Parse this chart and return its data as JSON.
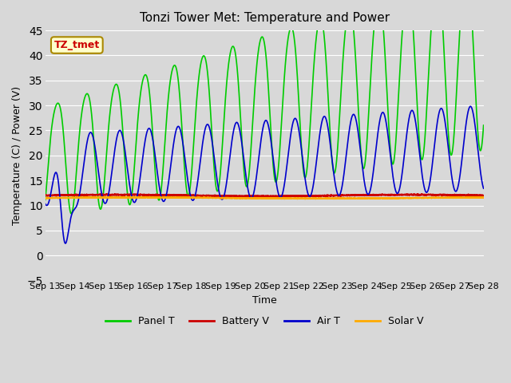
{
  "title": "Tonzi Tower Met: Temperature and Power",
  "xlabel": "Time",
  "ylabel": "Temperature (C) / Power (V)",
  "xlim": [
    0,
    15
  ],
  "ylim": [
    -5,
    45
  ],
  "yticks": [
    -5,
    0,
    5,
    10,
    15,
    20,
    25,
    30,
    35,
    40,
    45
  ],
  "xtick_labels": [
    "Sep 13",
    "Sep 14",
    "Sep 15",
    "Sep 16",
    "Sep 17",
    "Sep 18",
    "Sep 19",
    "Sep 20",
    "Sep 21",
    "Sep 22",
    "Sep 23",
    "Sep 24",
    "Sep 25",
    "Sep 26",
    "Sep 27",
    "Sep 28"
  ],
  "bg_color": "#e8e8e8",
  "plot_bg_color": "#d8d8d8",
  "grid_color": "#ffffff",
  "panel_T_color": "#00cc00",
  "battery_V_color": "#cc0000",
  "air_T_color": "#0000cc",
  "solar_V_color": "#ffaa00",
  "annotation_text": "TZ_tmet",
  "annotation_bg": "#ffffcc",
  "annotation_fg": "#cc0000"
}
